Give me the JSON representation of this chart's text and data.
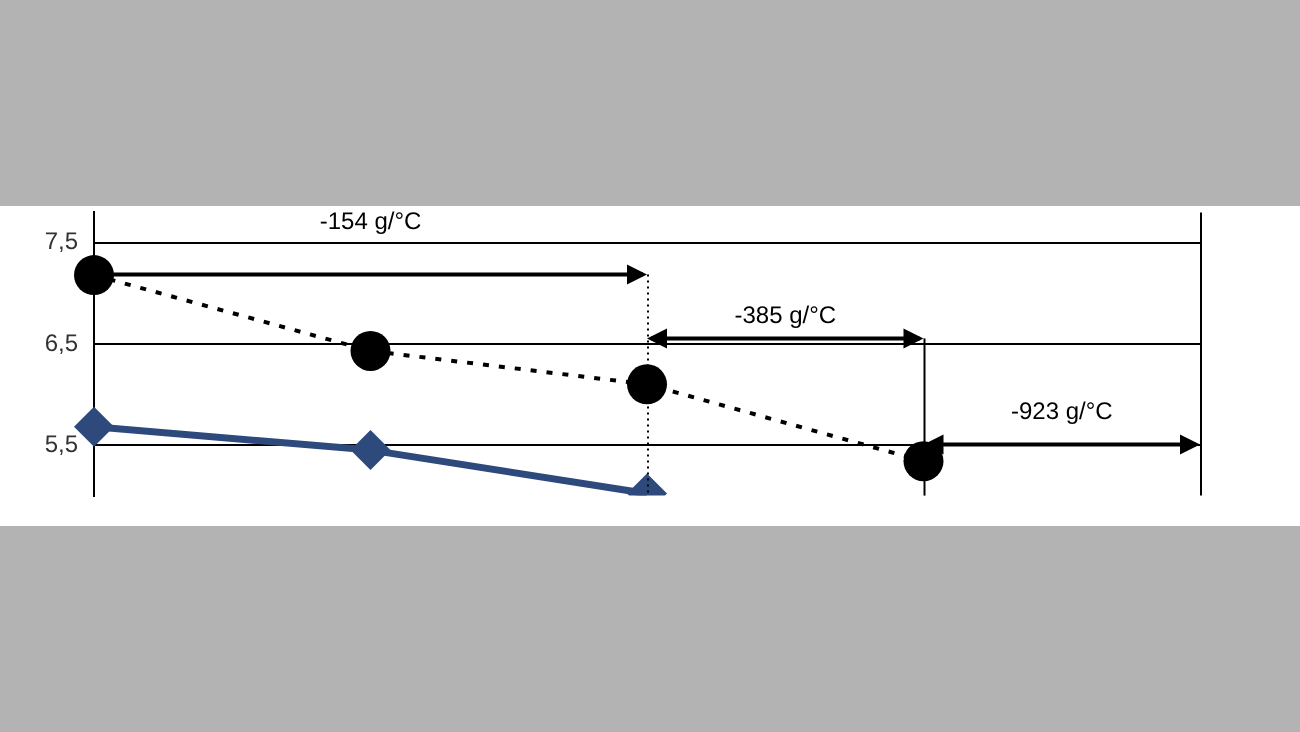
{
  "chart_data": {
    "type": "line",
    "categories": [
      null,
      null,
      null,
      null,
      null
    ],
    "series": [
      {
        "color": "#000000",
        "values": [
          7.18,
          6.43,
          6.1,
          5.34,
          null
        ],
        "marker": "circle",
        "line_style": "dotted"
      },
      {
        "color": "#2e4a7d",
        "values": [
          5.68,
          5.45,
          5.02,
          null,
          null
        ],
        "marker": "diamond",
        "line_style": "solid"
      }
    ],
    "ylim": [
      5.0,
      7.8
    ],
    "yticks": [
      {
        "value": 5.5,
        "label": "5,5"
      },
      {
        "value": 6.5,
        "label": "6,5"
      },
      {
        "value": 7.5,
        "label": "7,5"
      }
    ],
    "grid": "y",
    "legend": false,
    "tick_labels": "y",
    "annotations": [
      "-154 g/°C",
      "-385 g/°C",
      "-923 g/°C"
    ]
  }
}
